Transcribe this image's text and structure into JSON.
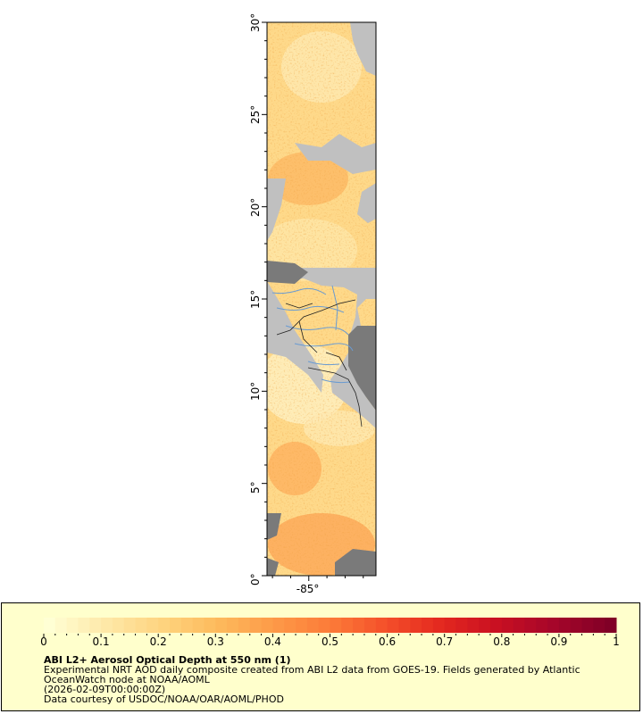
{
  "map": {
    "lat_ticks": [
      "0°",
      "5°",
      "10°",
      "15°",
      "20°",
      "25°",
      "30°"
    ],
    "lat_values": [
      0,
      5,
      10,
      15,
      20,
      25,
      30
    ],
    "lon_ticks": [
      "-85°"
    ],
    "lon_values": [
      -85
    ],
    "lat_range": [
      0,
      30
    ],
    "lon_range": [
      -87.3,
      -81.3
    ],
    "colors": {
      "land_light": "#c0c0c0",
      "land_dark": "#7a7a7a",
      "rivers": "#6a9bd1",
      "borders": "#222222",
      "nodata": "#ffffff"
    }
  },
  "legend": {
    "title": "ABI L2+ Aerosol Optical Depth at 550 nm (1)",
    "line1": "Experimental NRT AOD daily composite created from ABI L2 data from GOES-19. Fields generated by Atlantic",
    "line2": "OceanWatch node at NOAA/AOML",
    "line3": "(2026-02-09T00:00:00Z)",
    "line4": "Data courtesy of USDOC/NOAA/OAR/AOML/PHOD",
    "colorbar_labels": [
      "0",
      "0.1",
      "0.2",
      "0.3",
      "0.4",
      "0.5",
      "0.6",
      "0.7",
      "0.8",
      "0.9",
      "1"
    ],
    "colorbar_values": [
      0,
      0.1,
      0.2,
      0.3,
      0.4,
      0.5,
      0.6,
      0.7,
      0.8,
      0.9,
      1
    ],
    "colorbar_range": [
      0,
      1
    ],
    "colorbar_colors": [
      "#ffffd4",
      "#fee8a8",
      "#fed47f",
      "#fdba5c",
      "#fd9a48",
      "#fc7b38",
      "#f44f2a",
      "#e3281f",
      "#c80f22",
      "#a5062a",
      "#800026"
    ]
  }
}
